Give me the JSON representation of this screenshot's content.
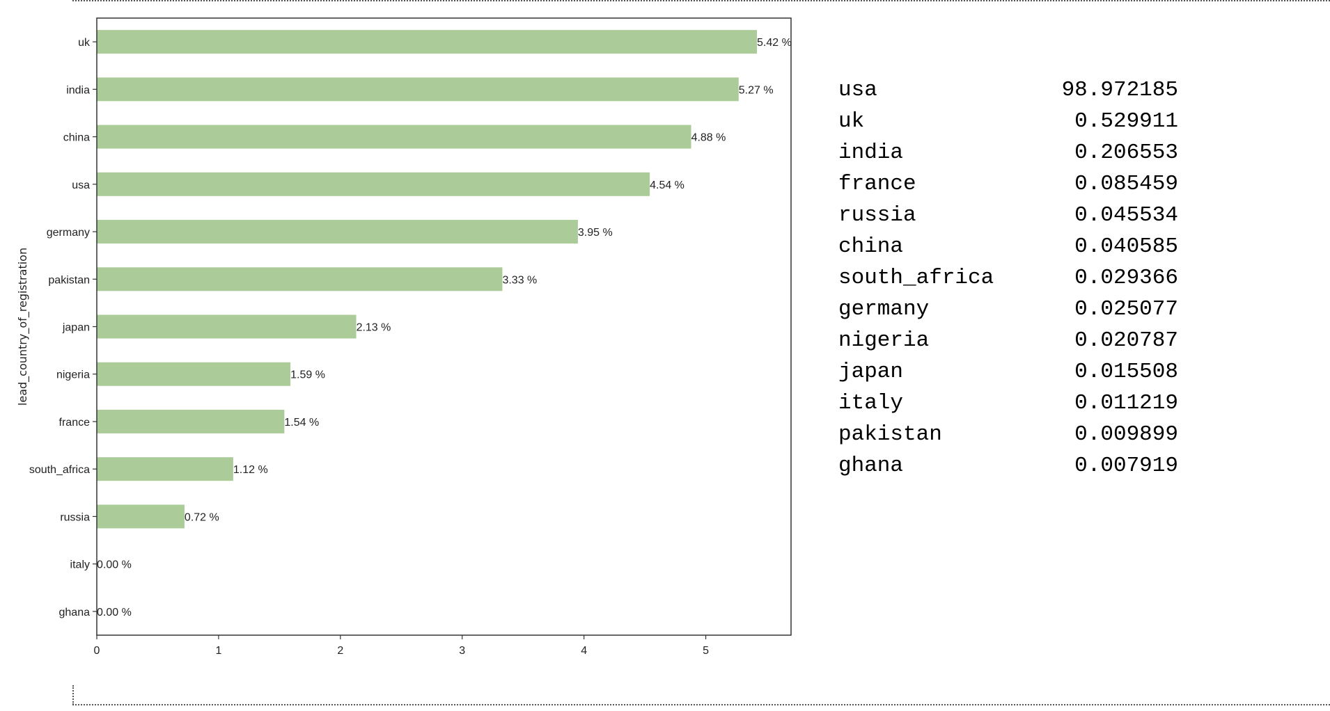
{
  "chart_data": {
    "type": "bar",
    "orientation": "horizontal",
    "ylabel": "lead_country_of_registration",
    "xlabel": "",
    "xlim": [
      0,
      5.7
    ],
    "xticks": [
      0,
      1,
      2,
      3,
      4,
      5
    ],
    "bar_color": "#abcc98",
    "categories": [
      "uk",
      "india",
      "china",
      "usa",
      "germany",
      "pakistan",
      "japan",
      "nigeria",
      "france",
      "south_africa",
      "russia",
      "italy",
      "ghana"
    ],
    "values": [
      5.42,
      5.27,
      4.88,
      4.54,
      3.95,
      3.33,
      2.13,
      1.59,
      1.54,
      1.12,
      0.72,
      0.0,
      0.0
    ],
    "labels": [
      "5.42 %",
      "5.27 %",
      "4.88 %",
      "4.54 %",
      "3.95 %",
      "3.33 %",
      "2.13 %",
      "1.59 %",
      "1.54 %",
      "1.12 %",
      "0.72 %",
      "0.00 %",
      "0.00 %"
    ]
  },
  "output": {
    "rows": [
      {
        "name": "usa",
        "value": "98.972185"
      },
      {
        "name": "uk",
        "value": "0.529911"
      },
      {
        "name": "india",
        "value": "0.206553"
      },
      {
        "name": "france",
        "value": "0.085459"
      },
      {
        "name": "russia",
        "value": "0.045534"
      },
      {
        "name": "china",
        "value": "0.040585"
      },
      {
        "name": "south_africa",
        "value": "0.029366"
      },
      {
        "name": "germany",
        "value": "0.025077"
      },
      {
        "name": "nigeria",
        "value": "0.020787"
      },
      {
        "name": "japan",
        "value": "0.015508"
      },
      {
        "name": "italy",
        "value": "0.011219"
      },
      {
        "name": "pakistan",
        "value": "0.009899"
      },
      {
        "name": "ghana",
        "value": "0.007919"
      }
    ]
  }
}
